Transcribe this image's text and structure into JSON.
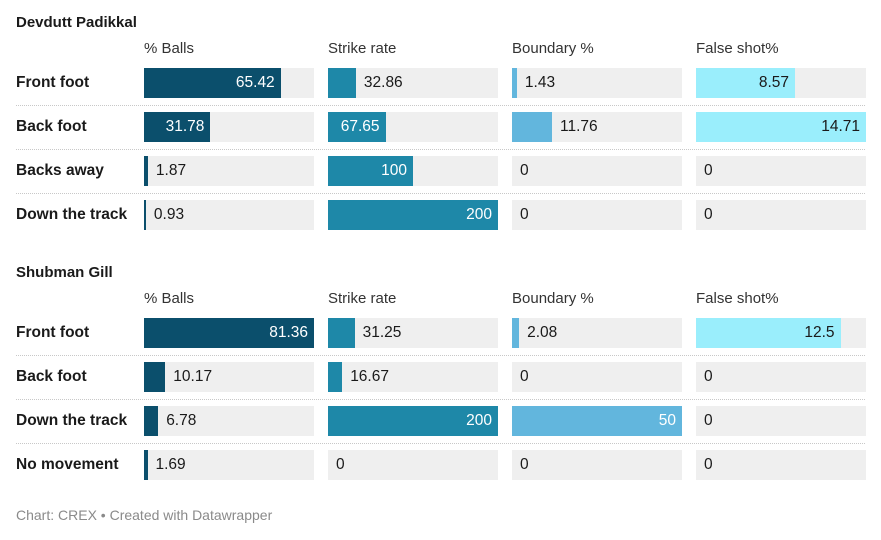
{
  "chart_data": {
    "type": "table",
    "columns": [
      {
        "name": "% Balls",
        "max": 81.36,
        "color": "#0b4f6c"
      },
      {
        "name": "Strike rate",
        "max": 200,
        "color": "#1e88a8"
      },
      {
        "name": "Boundary %",
        "max": 50,
        "color": "#62b6dd"
      },
      {
        "name": "False shot%",
        "max": 14.71,
        "color": "#9aeefc"
      }
    ],
    "panels": [
      {
        "title": "Devdutt Padikkal",
        "rows": [
          {
            "label": "Front foot",
            "values": [
              65.42,
              32.86,
              1.43,
              8.57
            ]
          },
          {
            "label": "Back foot",
            "values": [
              31.78,
              67.65,
              11.76,
              14.71
            ]
          },
          {
            "label": "Backs away",
            "values": [
              1.87,
              100,
              0,
              0
            ]
          },
          {
            "label": "Down the track",
            "values": [
              0.93,
              200,
              0,
              0
            ]
          }
        ]
      },
      {
        "title": "Shubman Gill",
        "rows": [
          {
            "label": "Front foot",
            "values": [
              81.36,
              31.25,
              2.08,
              12.5
            ]
          },
          {
            "label": "Back foot",
            "values": [
              10.17,
              16.67,
              0,
              0
            ]
          },
          {
            "label": "Down the track",
            "values": [
              6.78,
              200,
              50,
              0
            ]
          },
          {
            "label": "No movement",
            "values": [
              1.69,
              0,
              0,
              0
            ]
          }
        ]
      }
    ]
  },
  "footer": "Chart: CREX • Created with Datawrapper"
}
